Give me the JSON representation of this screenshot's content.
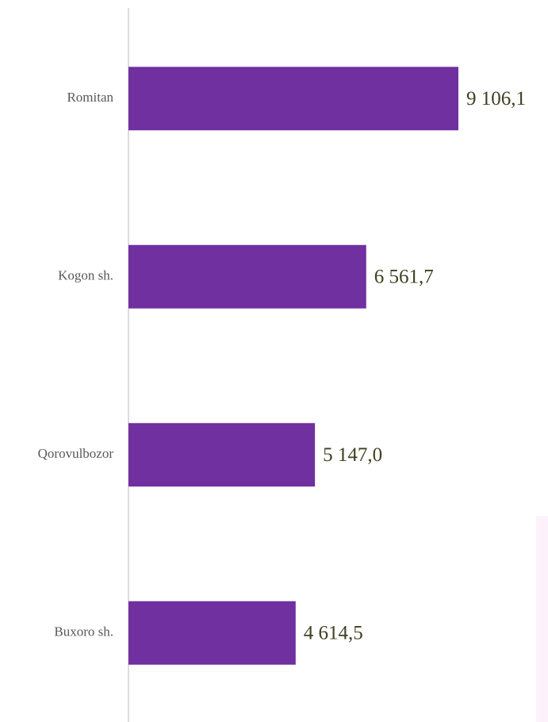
{
  "chart_data": {
    "type": "bar",
    "orientation": "horizontal",
    "categories": [
      "Romitan",
      "Kogon sh.",
      "Qorovulbozor",
      "Buxoro sh."
    ],
    "values": [
      9106.1,
      6561.7,
      5147.0,
      4614.5
    ],
    "value_labels": [
      "9 106,1",
      "6 561,7",
      "5 147,0",
      "4 614,5"
    ],
    "color": "#7030a0"
  }
}
